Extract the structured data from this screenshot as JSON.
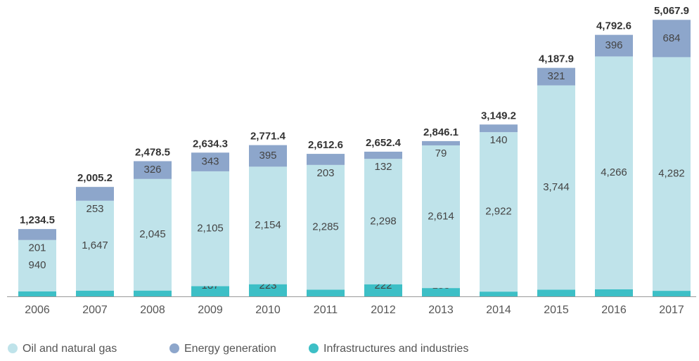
{
  "chart_data": {
    "type": "stacked-bar",
    "categories": [
      "2006",
      "2007",
      "2008",
      "2009",
      "2010",
      "2011",
      "2012",
      "2013",
      "2014",
      "2015",
      "2016",
      "2017"
    ],
    "series": [
      {
        "name": "Infrastructures and industries",
        "color": "#3dbfc6",
        "values": [
          93,
          106,
          107,
          187,
          223,
          124,
          222,
          153,
          88,
          123,
          131,
          102
        ]
      },
      {
        "name": "Oil and natural gas",
        "color": "#bfe3ea",
        "values": [
          940,
          1647,
          2045,
          2105,
          2154,
          2285,
          2298,
          2614,
          2922,
          3744,
          4266,
          4282
        ],
        "value_labels": [
          "940",
          "1,647",
          "2,045",
          "2,105",
          "2,154",
          "2,285",
          "2,298",
          "2,614",
          "2,922",
          "3,744",
          "4,266",
          "4,282"
        ]
      },
      {
        "name": "Energy generation",
        "color": "#8da6cb",
        "values": [
          201,
          253,
          326,
          343,
          395,
          203,
          132,
          79,
          140,
          321,
          396,
          684
        ]
      }
    ],
    "totals": [
      1234.5,
      2005.2,
      2478.5,
      2634.3,
      2771.4,
      2612.6,
      2652.4,
      2846.1,
      3149.2,
      4187.9,
      4792.6,
      5067.9
    ],
    "total_labels": [
      "1,234.5",
      "2,005.2",
      "2,478.5",
      "2,634.3",
      "2,771.4",
      "2,612.6",
      "2,652.4",
      "2,846.1",
      "3,149.2",
      "4,187.9",
      "4,792.6",
      "5,067.9"
    ],
    "ylim": [
      0,
      5200
    ],
    "legend": "bottom-left"
  }
}
